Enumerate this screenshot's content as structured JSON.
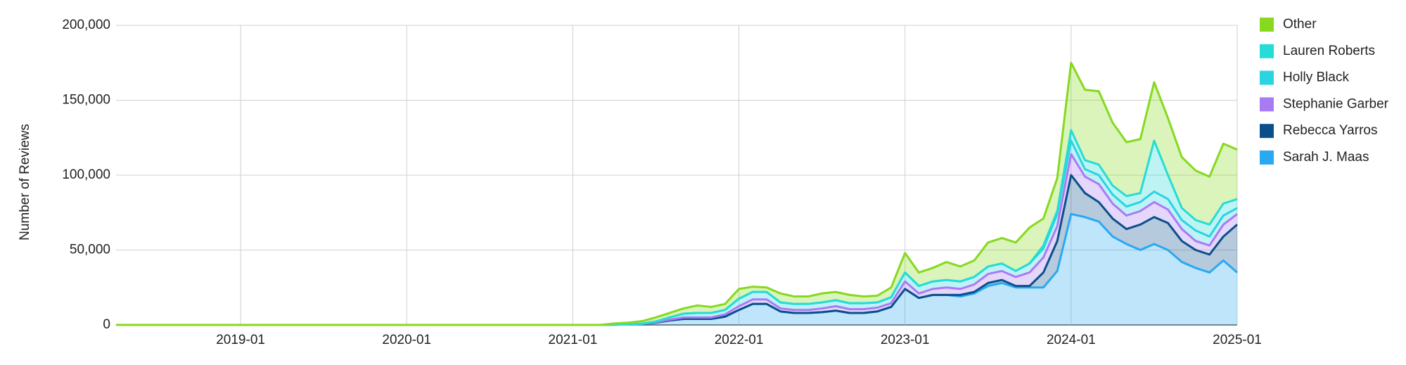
{
  "chart_data": {
    "type": "stacked-area",
    "y_label": "Number of Reviews",
    "x": [
      "2018-04",
      "2018-05",
      "2018-06",
      "2018-07",
      "2018-08",
      "2018-09",
      "2018-10",
      "2018-11",
      "2018-12",
      "2019-01",
      "2019-02",
      "2019-03",
      "2019-04",
      "2019-05",
      "2019-06",
      "2019-07",
      "2019-08",
      "2019-09",
      "2019-10",
      "2019-11",
      "2019-12",
      "2020-01",
      "2020-02",
      "2020-03",
      "2020-04",
      "2020-05",
      "2020-06",
      "2020-07",
      "2020-08",
      "2020-09",
      "2020-10",
      "2020-11",
      "2020-12",
      "2021-01",
      "2021-02",
      "2021-03",
      "2021-04",
      "2021-05",
      "2021-06",
      "2021-07",
      "2021-08",
      "2021-09",
      "2021-10",
      "2021-11",
      "2021-12",
      "2022-01",
      "2022-02",
      "2022-03",
      "2022-04",
      "2022-05",
      "2022-06",
      "2022-07",
      "2022-08",
      "2022-09",
      "2022-10",
      "2022-11",
      "2022-12",
      "2023-01",
      "2023-02",
      "2023-03",
      "2023-04",
      "2023-05",
      "2023-06",
      "2023-07",
      "2023-08",
      "2023-09",
      "2023-10",
      "2023-11",
      "2023-12",
      "2024-01",
      "2024-02",
      "2024-03",
      "2024-04",
      "2024-05",
      "2024-06",
      "2024-07",
      "2024-08",
      "2024-09",
      "2024-10",
      "2024-11",
      "2024-12",
      "2025-01"
    ],
    "xticks": [
      "2019-01",
      "2020-01",
      "2021-01",
      "2022-01",
      "2023-01",
      "2024-01",
      "2025-01"
    ],
    "ylim": [
      0,
      200000
    ],
    "yticks": [
      0,
      {
        "value": 50000,
        "label": "50,000"
      },
      {
        "value": 100000,
        "label": "100,000"
      },
      {
        "value": 150000,
        "label": "150,000"
      },
      {
        "value": 200000,
        "label": "200,000"
      }
    ],
    "grid": true,
    "legend": "right",
    "series": [
      {
        "name": "Sarah J. Maas",
        "color": "#2aa8f2",
        "values": [
          0,
          0,
          0,
          0,
          0,
          0,
          0,
          0,
          0,
          0,
          0,
          0,
          0,
          0,
          0,
          0,
          0,
          0,
          0,
          0,
          0,
          0,
          0,
          0,
          0,
          0,
          0,
          0,
          0,
          0,
          0,
          0,
          0,
          0,
          0,
          0,
          200,
          300,
          600,
          1500,
          3000,
          4000,
          4000,
          4000,
          5500,
          10000,
          14000,
          14000,
          9000,
          8000,
          8000,
          8500,
          9500,
          8000,
          8000,
          9000,
          12000,
          24000,
          18000,
          20000,
          20000,
          19000,
          21000,
          26000,
          28000,
          25000,
          25000,
          25000,
          36000,
          74000,
          72000,
          69000,
          59000,
          54000,
          50000,
          54000,
          50000,
          42000,
          38000,
          35000,
          43000,
          35000
        ]
      },
      {
        "name": "Rebecca Yarros",
        "color": "#0b4f8a",
        "values": [
          0,
          0,
          0,
          0,
          0,
          0,
          0,
          0,
          0,
          0,
          0,
          0,
          0,
          0,
          0,
          0,
          0,
          0,
          0,
          0,
          0,
          0,
          0,
          0,
          0,
          0,
          0,
          0,
          0,
          0,
          0,
          0,
          0,
          0,
          0,
          0,
          0,
          0,
          0,
          0,
          0,
          0,
          0,
          0,
          0,
          0,
          0,
          0,
          0,
          0,
          0,
          0,
          0,
          0,
          0,
          0,
          0,
          0,
          0,
          0,
          0,
          1000,
          1000,
          2000,
          2000,
          1000,
          1000,
          10000,
          20000,
          26000,
          16000,
          13000,
          12000,
          10000,
          17000,
          18000,
          18000,
          14000,
          12000,
          12000,
          16000,
          32000
        ]
      },
      {
        "name": "Stephanie Garber",
        "color": "#a87bf5",
        "values": [
          0,
          0,
          0,
          0,
          0,
          0,
          0,
          0,
          0,
          0,
          0,
          0,
          0,
          0,
          0,
          0,
          0,
          0,
          0,
          0,
          0,
          0,
          0,
          0,
          0,
          0,
          0,
          0,
          0,
          0,
          0,
          0,
          0,
          0,
          0,
          0,
          0,
          0,
          100,
          300,
          500,
          1000,
          1000,
          1000,
          1500,
          2500,
          3000,
          3000,
          2000,
          2000,
          2000,
          2500,
          3000,
          2500,
          2500,
          2500,
          2500,
          5000,
          3000,
          4000,
          5000,
          4000,
          5000,
          6000,
          6000,
          6000,
          9000,
          10000,
          10000,
          14000,
          11000,
          12000,
          10000,
          9000,
          9000,
          10000,
          9000,
          8000,
          6000,
          6000,
          8000,
          7000
        ]
      },
      {
        "name": "Holly Black",
        "color": "#2ad4e0",
        "values": [
          0,
          0,
          0,
          0,
          0,
          0,
          0,
          0,
          0,
          0,
          0,
          0,
          0,
          0,
          0,
          0,
          0,
          0,
          0,
          0,
          0,
          0,
          0,
          0,
          0,
          0,
          0,
          0,
          0,
          0,
          0,
          0,
          0,
          0,
          0,
          0,
          0,
          0,
          200,
          500,
          1500,
          2500,
          3000,
          3000,
          3000,
          5000,
          5000,
          5000,
          4000,
          4000,
          4000,
          4000,
          4000,
          4000,
          4000,
          3500,
          4000,
          6000,
          5000,
          5000,
          5000,
          5000,
          5000,
          5000,
          5000,
          4000,
          6000,
          6000,
          8000,
          9000,
          5000,
          6000,
          6000,
          6000,
          6000,
          7000,
          7000,
          6000,
          7000,
          6000,
          6000,
          4000
        ]
      },
      {
        "name": "Lauren Roberts",
        "color": "#26dcd6",
        "values": [
          0,
          0,
          0,
          0,
          0,
          0,
          0,
          0,
          0,
          0,
          0,
          0,
          0,
          0,
          0,
          0,
          0,
          0,
          0,
          0,
          0,
          0,
          0,
          0,
          0,
          0,
          0,
          0,
          0,
          0,
          0,
          0,
          0,
          0,
          0,
          0,
          0,
          0,
          0,
          0,
          0,
          0,
          0,
          0,
          0,
          0,
          0,
          0,
          0,
          0,
          0,
          0,
          0,
          0,
          0,
          0,
          0,
          0,
          0,
          0,
          0,
          0,
          0,
          0,
          0,
          0,
          0,
          2000,
          2000,
          7000,
          6000,
          7000,
          6000,
          7000,
          6000,
          34000,
          16000,
          8000,
          7000,
          8000,
          8000,
          6000
        ]
      },
      {
        "name": "Other",
        "color": "#86d91e",
        "values": [
          0,
          0,
          0,
          0,
          0,
          0,
          0,
          0,
          0,
          0,
          0,
          0,
          0,
          0,
          0,
          0,
          0,
          0,
          0,
          0,
          0,
          0,
          0,
          0,
          0,
          0,
          0,
          0,
          0,
          0,
          0,
          0,
          0,
          0,
          0,
          0,
          800,
          1200,
          1600,
          2700,
          3000,
          3500,
          5000,
          4000,
          4000,
          6500,
          3500,
          3000,
          6000,
          5000,
          5000,
          6000,
          5500,
          5500,
          4500,
          4500,
          6500,
          13000,
          9000,
          9000,
          12000,
          10000,
          11000,
          16000,
          17000,
          19000,
          24000,
          18000,
          22000,
          45000,
          47000,
          49000,
          42000,
          36000,
          36000,
          39000,
          38000,
          34000,
          33000,
          32000,
          40000,
          33000
        ]
      }
    ]
  }
}
